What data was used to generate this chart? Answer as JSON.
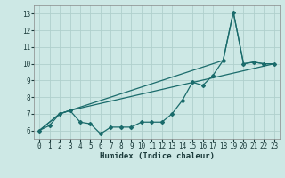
{
  "xlabel": "Humidex (Indice chaleur)",
  "bg_color": "#cde8e5",
  "grid_color": "#b0d0cc",
  "line_color": "#1a6b6b",
  "xlim": [
    -0.5,
    23.5
  ],
  "ylim": [
    5.5,
    13.5
  ],
  "xticks": [
    0,
    1,
    2,
    3,
    4,
    5,
    6,
    7,
    8,
    9,
    10,
    11,
    12,
    13,
    14,
    15,
    16,
    17,
    18,
    19,
    20,
    21,
    22,
    23
  ],
  "yticks": [
    6,
    7,
    8,
    9,
    10,
    11,
    12,
    13
  ],
  "series1_x": [
    0,
    1,
    2,
    3,
    4,
    5,
    6,
    7,
    8,
    9,
    10,
    11,
    12,
    13,
    14,
    15,
    16,
    17,
    18,
    19,
    20,
    21,
    22,
    23
  ],
  "series1_y": [
    6.0,
    6.3,
    7.0,
    7.2,
    6.5,
    6.4,
    5.8,
    6.2,
    6.2,
    6.2,
    6.5,
    6.5,
    6.5,
    7.0,
    7.8,
    8.9,
    8.7,
    9.3,
    10.2,
    13.1,
    10.0,
    10.1,
    10.0,
    10.0
  ],
  "series2_x": [
    0,
    2,
    3,
    18,
    19,
    20,
    21,
    22,
    23
  ],
  "series2_y": [
    6.0,
    7.0,
    7.2,
    10.2,
    13.1,
    10.0,
    10.1,
    10.0,
    10.0
  ],
  "series3_x": [
    0,
    2,
    3,
    23
  ],
  "series3_y": [
    6.0,
    7.0,
    7.2,
    10.0
  ]
}
